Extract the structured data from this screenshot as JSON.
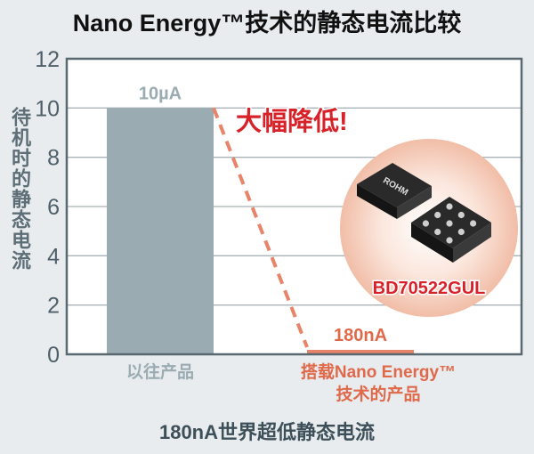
{
  "title": "Nano Energy™技术的静态电流比较",
  "footer": "180nA世界超低静态电流",
  "callout": "大幅降低!",
  "product_label": "BD70522GUL",
  "chip_marking": "ROHM",
  "chart_data": {
    "type": "bar",
    "title": "Nano Energy™技术的静态电流比较",
    "ylabel": "待机时的静态电流",
    "ylim": [
      0,
      12
    ],
    "yticks": [
      0,
      2,
      4,
      6,
      8,
      10,
      12
    ],
    "grid": true,
    "categories": [
      [
        "以往产品"
      ],
      [
        "搭载Nano Energy™",
        "技术的产品"
      ]
    ],
    "values": [
      10,
      0.18
    ],
    "data_labels": [
      "10µA",
      "180nA"
    ],
    "colors": {
      "bar1": "#9aabb2",
      "bar2": "#e8846a",
      "label1": "#9aabb2",
      "label2": "#e0694a",
      "callout": "#d8222a",
      "axis": "#5a6870"
    }
  }
}
